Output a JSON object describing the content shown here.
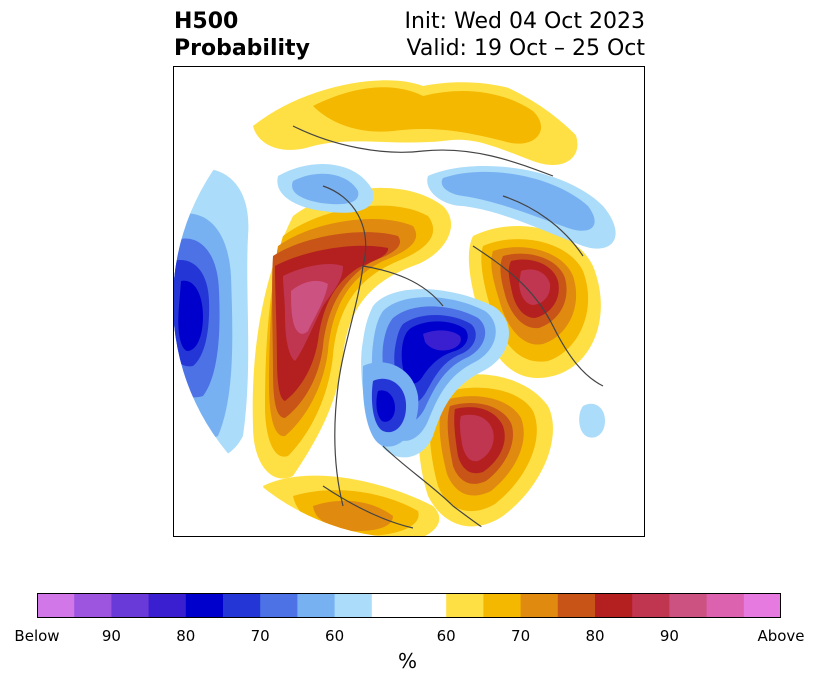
{
  "title": {
    "left_line1": "H500",
    "left_line2": "Probability",
    "right_line1": "Init: Wed 04 Oct 2023",
    "right_line2": "Valid: 19 Oct – 25 Oct"
  },
  "colors": {
    "below": [
      "#d177e8",
      "#9d55e0",
      "#6a3ad8",
      "#3a1fd0",
      "#0000cc",
      "#2437d6",
      "#4d72e6",
      "#78b1f2",
      "#abdcfa"
    ],
    "neutral": "#ffffff",
    "above": [
      "#ffe044",
      "#f4b800",
      "#e08a10",
      "#c85418",
      "#b42020",
      "#c03550",
      "#cc5282",
      "#dc62b0",
      "#e67ae0"
    ]
  },
  "colorbar": {
    "tick_labels": [
      "Below",
      "90",
      "80",
      "70",
      "60",
      "60",
      "70",
      "80",
      "90",
      "Above"
    ],
    "label": "%"
  }
}
